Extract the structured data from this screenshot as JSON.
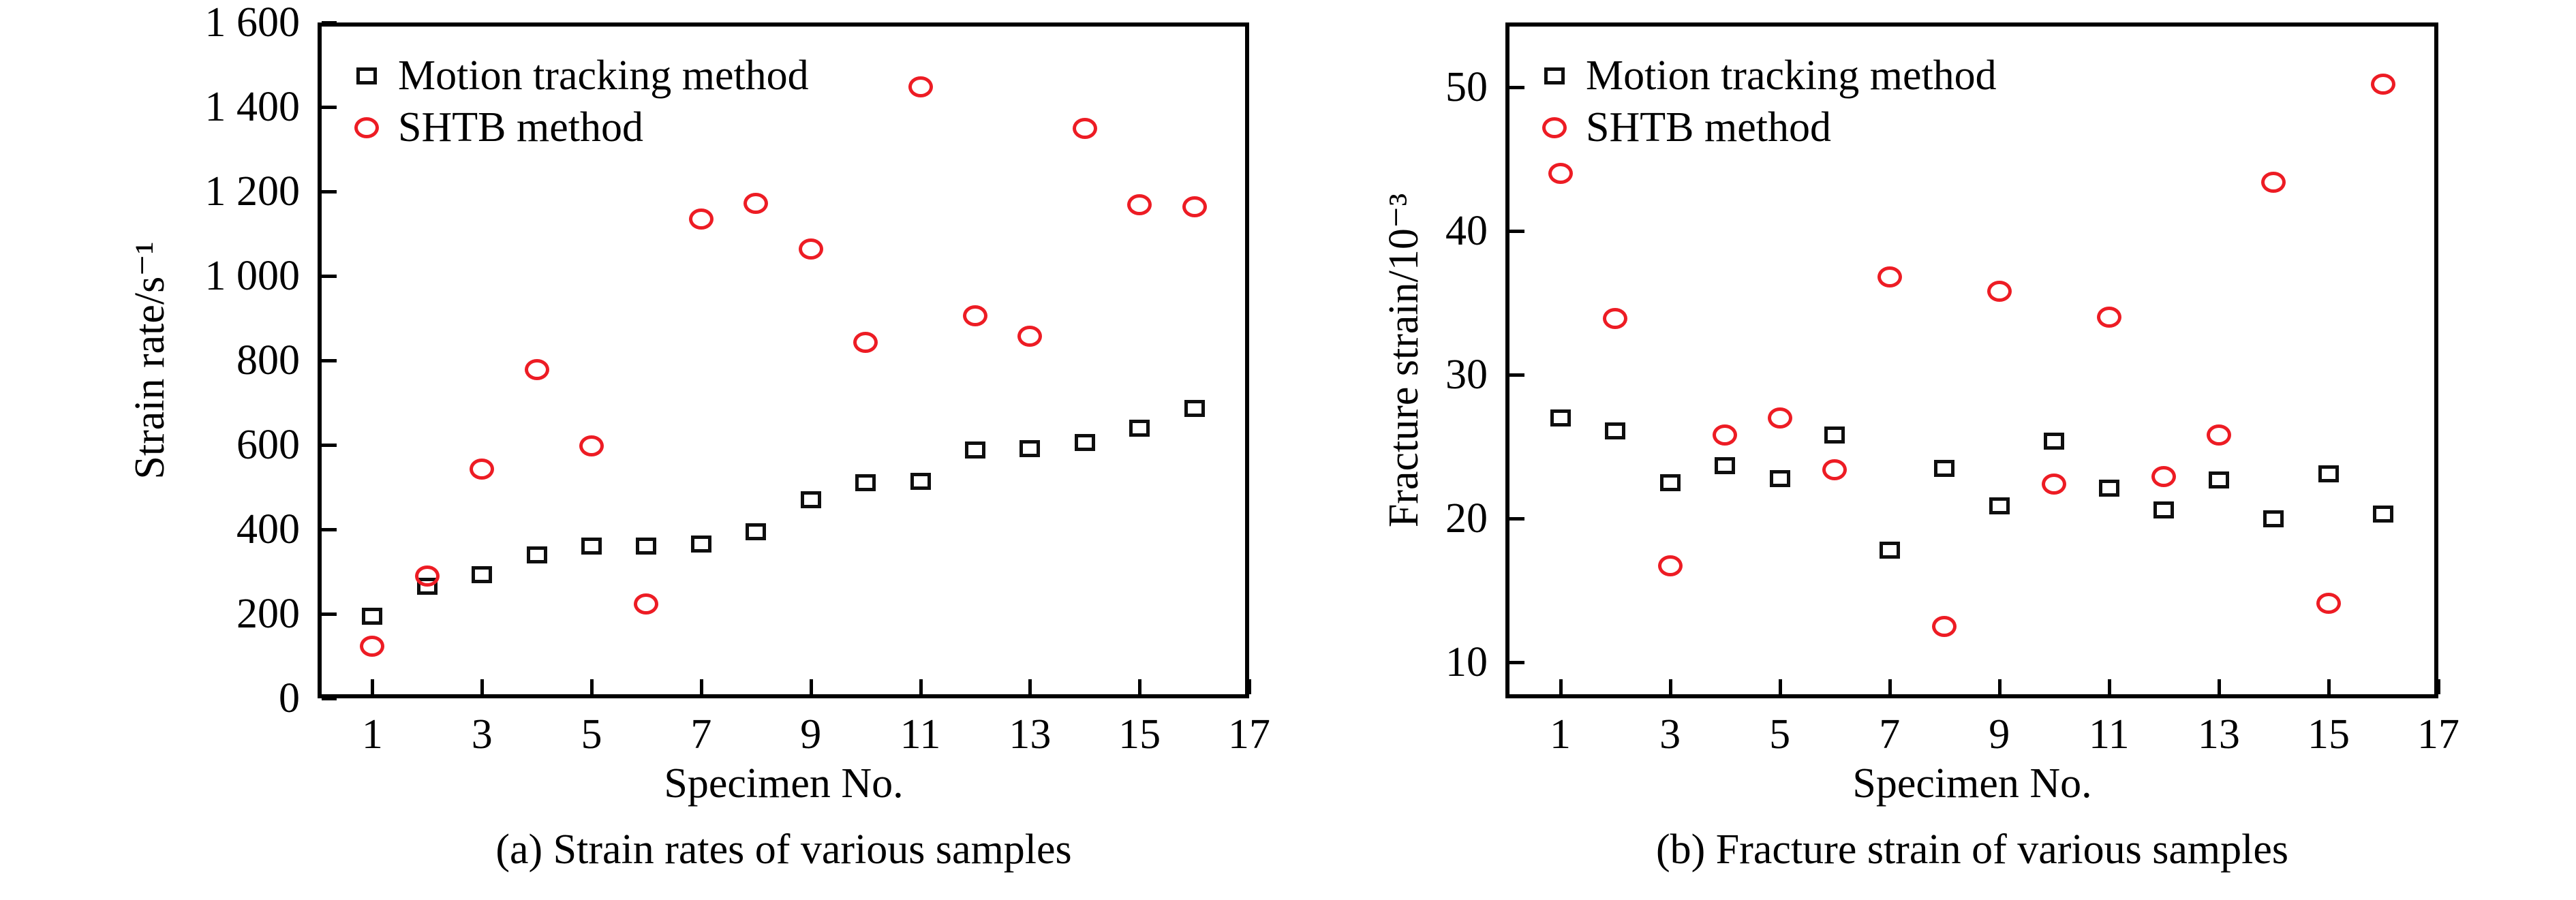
{
  "figure": {
    "background": "#ffffff"
  },
  "colors": {
    "axis": "#000000",
    "text": "#000000",
    "motion_marker": "#0f0f0f",
    "shtb_marker": "#ed1c24"
  },
  "chart_data": [
    {
      "type": "scatter",
      "caption": "(a) Strain rates of various samples",
      "xlabel": "Specimen No.",
      "ylabel": "Strain rate/s⁻¹",
      "xlim": [
        0,
        17
      ],
      "ylim": [
        0,
        1600
      ],
      "xticks": [
        1,
        3,
        5,
        7,
        9,
        11,
        13,
        15,
        17
      ],
      "xtick_labels": [
        "1",
        "3",
        "5",
        "7",
        "9",
        "11",
        "13",
        "15",
        "17"
      ],
      "yticks": [
        0,
        200,
        400,
        600,
        800,
        1000,
        1200,
        1400,
        1600
      ],
      "ytick_labels": [
        "0",
        "200",
        "400",
        "600",
        "800",
        "1 000",
        "1 200",
        "1 400",
        "1 600"
      ],
      "grid": false,
      "legend_position": "top-left",
      "x": [
        1,
        2,
        3,
        4,
        5,
        6,
        7,
        8,
        9,
        10,
        11,
        12,
        13,
        14,
        15,
        16
      ],
      "series": [
        {
          "name": "Motion tracking method",
          "marker": "square",
          "color": "#0f0f0f",
          "values": [
            195,
            265,
            293,
            340,
            360,
            360,
            365,
            395,
            470,
            510,
            514,
            588,
            591,
            605,
            640,
            686
          ]
        },
        {
          "name": "SHTB method",
          "marker": "circle",
          "color": "#ed1c24",
          "values": [
            123,
            290,
            543,
            778,
            597,
            224,
            1135,
            1172,
            1063,
            842,
            1448,
            905,
            857,
            1350,
            1168,
            1163
          ]
        }
      ]
    },
    {
      "type": "scatter",
      "caption": "(b) Fracture strain of various samples",
      "xlabel": "Specimen No.",
      "ylabel": "Fracture strain/10⁻³",
      "xlim": [
        0,
        17
      ],
      "ylim": [
        7.5,
        54.5
      ],
      "xticks": [
        1,
        3,
        5,
        7,
        9,
        11,
        13,
        15,
        17
      ],
      "xtick_labels": [
        "1",
        "3",
        "5",
        "7",
        "9",
        "11",
        "13",
        "15",
        "17"
      ],
      "yticks": [
        10,
        20,
        30,
        40,
        50
      ],
      "ytick_labels": [
        "10",
        "20",
        "30",
        "40",
        "50"
      ],
      "grid": false,
      "legend_position": "top-left",
      "x": [
        1,
        2,
        3,
        4,
        5,
        6,
        7,
        8,
        9,
        10,
        11,
        12,
        13,
        14,
        15,
        16
      ],
      "series": [
        {
          "name": "Motion tracking method",
          "marker": "square",
          "color": "#0f0f0f",
          "values": [
            27.0,
            26.1,
            22.5,
            23.7,
            22.8,
            25.8,
            17.8,
            23.5,
            20.9,
            25.4,
            22.1,
            20.6,
            22.7,
            20.0,
            23.1,
            20.3
          ]
        },
        {
          "name": "SHTB method",
          "marker": "circle",
          "color": "#ed1c24",
          "values": [
            44.0,
            33.9,
            16.7,
            25.8,
            27.0,
            23.4,
            36.8,
            12.5,
            35.8,
            22.4,
            34.0,
            22.9,
            25.8,
            43.4,
            14.1,
            50.2
          ]
        }
      ]
    }
  ]
}
